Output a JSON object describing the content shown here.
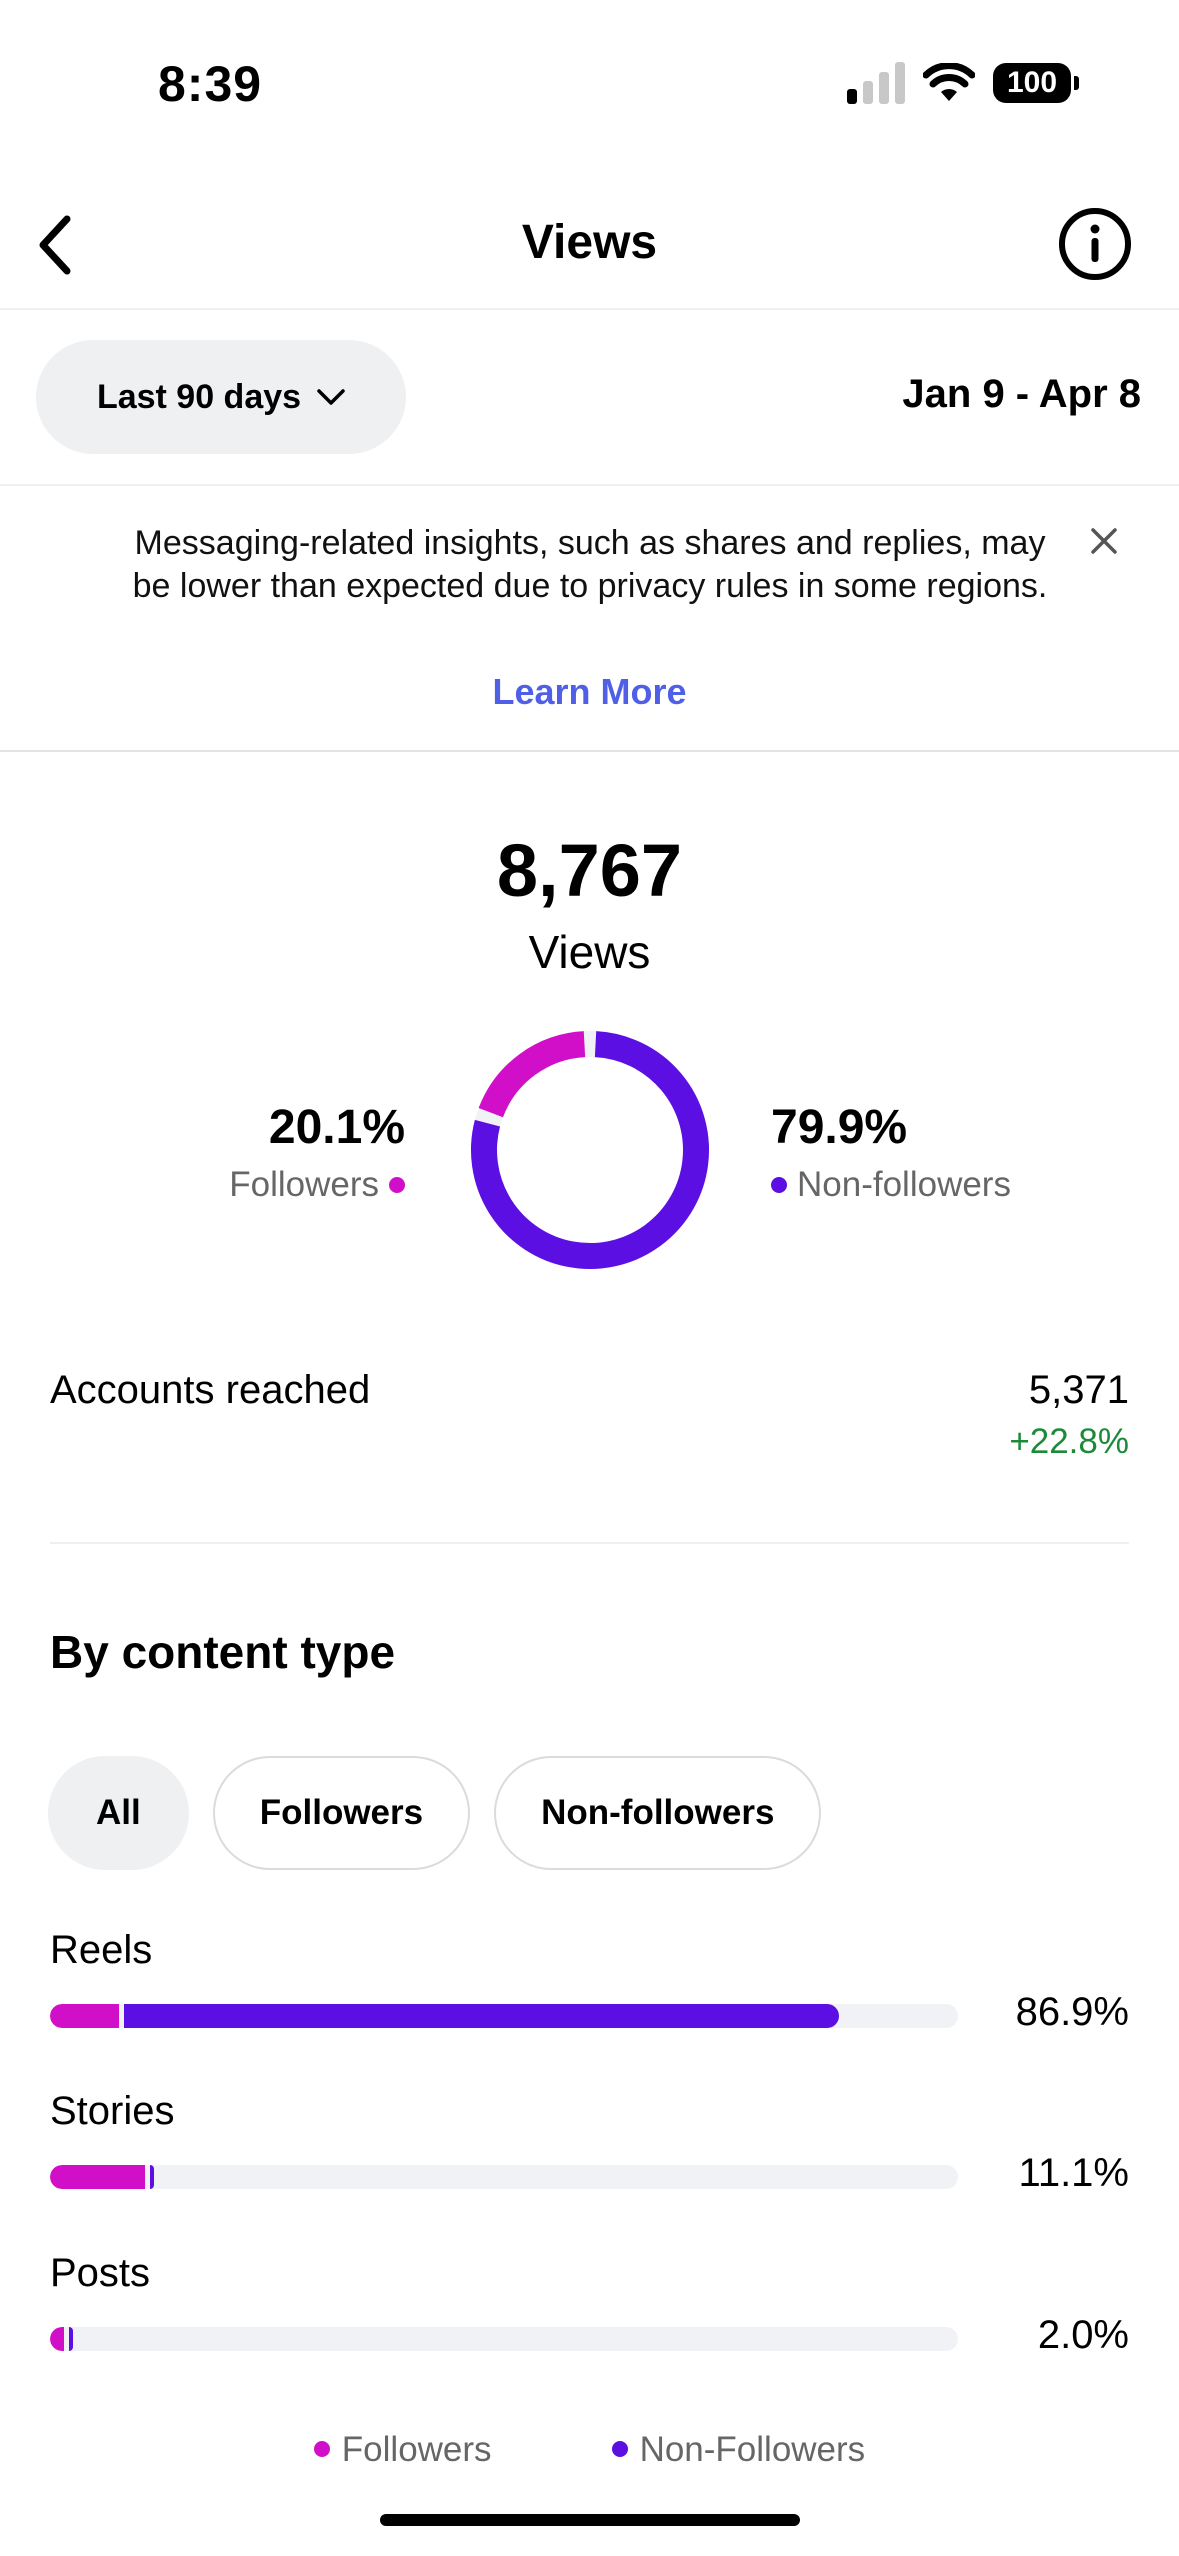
{
  "status_bar": {
    "time": "8:39",
    "battery": "100"
  },
  "nav": {
    "title": "Views"
  },
  "range": {
    "selected": "Last 90 days",
    "dates": "Jan 9 - Apr 8"
  },
  "banner": {
    "text": "Messaging-related insights, such as shares and replies, may be lower than expected due to privacy rules in some regions.",
    "link": "Learn More"
  },
  "summary": {
    "total": "8,767",
    "total_label": "Views",
    "followers_pct": "20.1%",
    "followers_label": "Followers",
    "nonfollowers_pct": "79.9%",
    "nonfollowers_label": "Non-followers",
    "followers_fraction": 0.201,
    "colors": {
      "followers": "#d10fc8",
      "nonfollowers": "#5b0fe2",
      "track": "#f1f2f5"
    }
  },
  "accounts": {
    "label": "Accounts reached",
    "value": "5,371",
    "change": "+22.8%"
  },
  "content_type": {
    "title": "By content type",
    "filters": [
      "All",
      "Followers",
      "Non-followers"
    ],
    "active_filter": "All",
    "rows": [
      {
        "label": "Reels",
        "pct": "86.9%",
        "total_fraction": 0.869,
        "followers_fraction": 0.076
      },
      {
        "label": "Stories",
        "pct": "11.1%",
        "total_fraction": 0.111,
        "followers_fraction": 0.105
      },
      {
        "label": "Posts",
        "pct": "2.0%",
        "total_fraction": 0.02,
        "followers_fraction": 0.015
      }
    ],
    "legend": [
      "Followers",
      "Non-Followers"
    ]
  }
}
